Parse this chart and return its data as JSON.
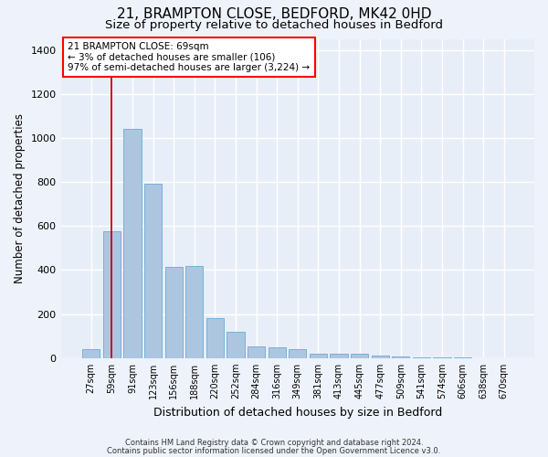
{
  "title": "21, BRAMPTON CLOSE, BEDFORD, MK42 0HD",
  "subtitle": "Size of property relative to detached houses in Bedford",
  "xlabel": "Distribution of detached houses by size in Bedford",
  "ylabel": "Number of detached properties",
  "footer_line1": "Contains HM Land Registry data © Crown copyright and database right 2024.",
  "footer_line2": "Contains public sector information licensed under the Open Government Licence v3.0.",
  "annotation_line1": "21 BRAMPTON CLOSE: 69sqm",
  "annotation_line2": "← 3% of detached houses are smaller (106)",
  "annotation_line3": "97% of semi-detached houses are larger (3,224) →",
  "bar_color": "#adc6e0",
  "bar_edge_color": "#6aaad4",
  "redline_color": "#cc0000",
  "redline_x": 1,
  "categories": [
    "27sqm",
    "59sqm",
    "91sqm",
    "123sqm",
    "156sqm",
    "188sqm",
    "220sqm",
    "252sqm",
    "284sqm",
    "316sqm",
    "349sqm",
    "381sqm",
    "413sqm",
    "445sqm",
    "477sqm",
    "509sqm",
    "541sqm",
    "574sqm",
    "606sqm",
    "638sqm",
    "670sqm"
  ],
  "values": [
    40,
    575,
    1040,
    790,
    415,
    420,
    180,
    120,
    55,
    50,
    40,
    22,
    20,
    20,
    10,
    8,
    5,
    3,
    2,
    1,
    1
  ],
  "ylim": [
    0,
    1450
  ],
  "yticks": [
    0,
    200,
    400,
    600,
    800,
    1000,
    1200,
    1400
  ],
  "background_color": "#eef2fa",
  "plot_bg_color": "#e8eef8",
  "grid_color": "#ffffff",
  "title_fontsize": 11,
  "subtitle_fontsize": 9.5,
  "xlabel_fontsize": 9,
  "ylabel_fontsize": 8.5,
  "tick_fontsize": 7,
  "footer_fontsize": 6,
  "annotation_fontsize": 7.5
}
